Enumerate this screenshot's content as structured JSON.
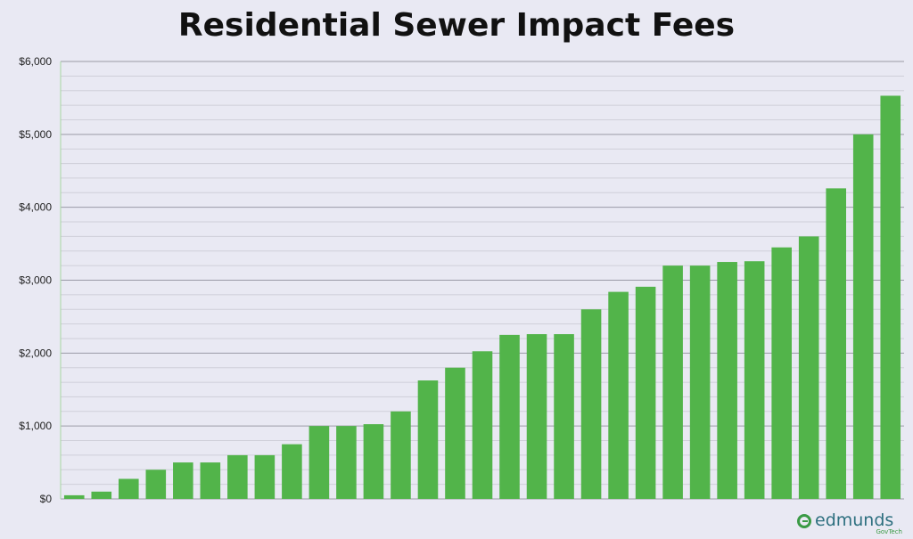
{
  "chart_data": {
    "type": "bar",
    "title": "Residential Sewer Impact Fees",
    "xlabel": "",
    "ylabel": "",
    "ylim": [
      0,
      6000
    ],
    "y_ticks": [
      "$0",
      "$1,000",
      "$2,000",
      "$3,000",
      "$4,000",
      "$5,000",
      "$6,000"
    ],
    "grid": true,
    "minor_grid": true,
    "bar_color": "#52b44a",
    "values": [
      50,
      100,
      275,
      400,
      500,
      500,
      600,
      600,
      750,
      1000,
      1000,
      1025,
      1200,
      1625,
      1800,
      2025,
      2250,
      2260,
      2260,
      2600,
      2840,
      2910,
      3200,
      3200,
      3250,
      3260,
      3450,
      3600,
      4260,
      5000,
      5530
    ]
  },
  "logo": {
    "word": "edmunds",
    "sub": "GovTech"
  }
}
